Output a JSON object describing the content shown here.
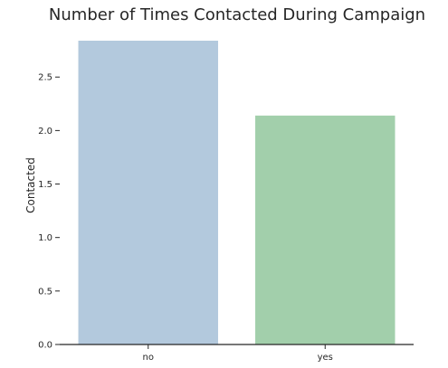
{
  "chart_data": {
    "type": "bar",
    "title": "Number of Times Contacted During Campaign",
    "xlabel": "",
    "ylabel": "Contacted",
    "categories": [
      "no",
      "yes"
    ],
    "values": [
      2.84,
      2.14
    ],
    "colors": [
      "#b3c9dd",
      "#a2cfab"
    ],
    "ylim": [
      0,
      2.84
    ],
    "yticks": [
      0.0,
      0.5,
      1.0,
      1.5,
      2.0,
      2.5
    ],
    "ytick_labels": [
      "0.0",
      "0.5",
      "1.0",
      "1.5",
      "2.0",
      "2.5"
    ],
    "grid": false,
    "legend": "none"
  }
}
